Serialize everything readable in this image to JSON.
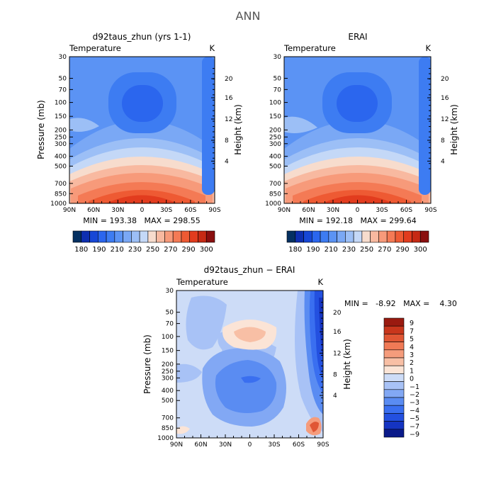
{
  "figure_title": "ANN",
  "colors": {
    "ramp": [
      "#053061",
      "#0e2fb0",
      "#1747d6",
      "#2b66ee",
      "#3d7cf2",
      "#5b93f4",
      "#7aa8f5",
      "#9cbff6",
      "#c4d8f7",
      "#f7dccd",
      "#f8b9a0",
      "#f79a7a",
      "#f47a55",
      "#ee5a33",
      "#e23c1e",
      "#c62a14",
      "#8a0f0f"
    ],
    "diff_ramp": [
      "#0a1a8a",
      "#1534c2",
      "#2350e0",
      "#3a6ff0",
      "#5a8cf2",
      "#82a8f4",
      "#a8c2f6",
      "#cddcf7",
      "#fbe4d6",
      "#f8bfa5",
      "#f59c7c",
      "#f07a56",
      "#e05634",
      "#c8361c",
      "#9a1a10"
    ]
  },
  "chart_data": [
    {
      "type": "heatmap",
      "title": "d92taus_zhun (yrs 1-1)",
      "label_left": "Temperature",
      "label_right": "K",
      "ylabel": "Pressure (mb)",
      "y2label": "Height (km)",
      "x_ticks": [
        "90N",
        "60N",
        "30N",
        "0",
        "30S",
        "60S",
        "90S"
      ],
      "y_ticks": [
        "30",
        "50",
        "70",
        "100",
        "150",
        "200",
        "250",
        "300",
        "400",
        "500",
        "700",
        "850",
        "1000"
      ],
      "y2_ticks": [
        "20",
        "16",
        "12",
        "8",
        "4"
      ],
      "min_max_text": "MIN = 193.38   MAX = 298.55",
      "min": 193.38,
      "max": 298.55,
      "colorbar_labels": [
        "180",
        "190",
        "210",
        "230",
        "250",
        "270",
        "290",
        "300"
      ]
    },
    {
      "type": "heatmap",
      "title": "ERAI",
      "label_left": "Temperature",
      "label_right": "K",
      "ylabel": "",
      "y2label": "Height (km)",
      "x_ticks": [
        "90N",
        "60N",
        "30N",
        "0",
        "30S",
        "60S",
        "90S"
      ],
      "y_ticks": [
        "30",
        "50",
        "70",
        "100",
        "150",
        "200",
        "250",
        "300",
        "400",
        "500",
        "700",
        "850",
        "1000"
      ],
      "y2_ticks": [
        "20",
        "16",
        "12",
        "8",
        "4"
      ],
      "min_max_text": "MIN = 192.18   MAX = 299.64",
      "min": 192.18,
      "max": 299.64,
      "colorbar_labels": [
        "180",
        "190",
        "210",
        "230",
        "250",
        "270",
        "290",
        "300"
      ]
    },
    {
      "type": "heatmap",
      "title": "d92taus_zhun − ERAI",
      "label_left": "Temperature",
      "label_right": "K",
      "ylabel": "Pressure (mb)",
      "y2label": "Height (km)",
      "x_ticks": [
        "90N",
        "60N",
        "30N",
        "0",
        "30S",
        "60S",
        "90S"
      ],
      "y_ticks": [
        "30",
        "50",
        "70",
        "100",
        "150",
        "200",
        "250",
        "300",
        "400",
        "500",
        "700",
        "850",
        "1000"
      ],
      "y2_ticks": [
        "20",
        "16",
        "12",
        "8",
        "4"
      ],
      "min_max_text": "MIN =   -8.92   MAX =    4.30",
      "min": -8.92,
      "max": 4.3,
      "colorbar_labels": [
        "9",
        "7",
        "5",
        "4",
        "3",
        "2",
        "1",
        "0",
        "−1",
        "−2",
        "−3",
        "−4",
        "−5",
        "−7",
        "−9"
      ]
    }
  ]
}
